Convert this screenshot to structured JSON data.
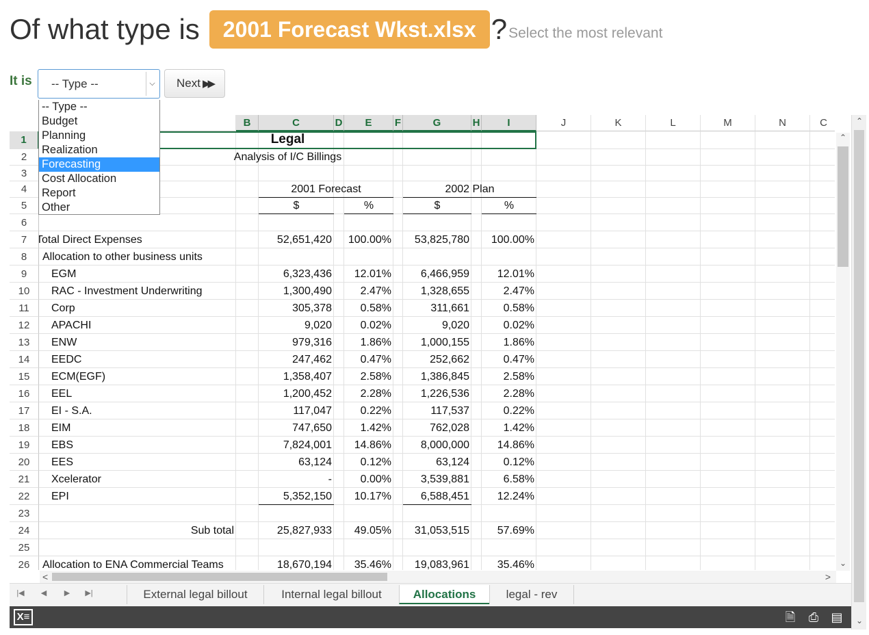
{
  "question": {
    "prefix": "Of what type is",
    "filename": "2001 Forecast Wkst.xlsx",
    "mark": "?",
    "hint": "Select the most relevant"
  },
  "form": {
    "label": "It is",
    "select_value": "-- Type --",
    "next_label": "Next",
    "options": [
      "-- Type --",
      "Budget",
      "Planning",
      "Realization",
      "Forecasting",
      "Cost Allocation",
      "Report",
      "Other"
    ],
    "highlighted_option": "Forecasting"
  },
  "spreadsheet": {
    "columns": [
      "B",
      "C",
      "D",
      "E",
      "F",
      "G",
      "H",
      "I",
      "J",
      "K",
      "L",
      "M",
      "N",
      "C"
    ],
    "row_numbers": [
      "1",
      "2",
      "3",
      "4",
      "5",
      "6",
      "7",
      "8",
      "9",
      "10",
      "11",
      "12",
      "13",
      "14",
      "15",
      "16",
      "17",
      "18",
      "19",
      "20",
      "21",
      "22",
      "23",
      "24",
      "25",
      "26"
    ],
    "title": "Legal",
    "subtitle": "Analysis of I/C Billings",
    "group_headers": {
      "forecast": "2001 Forecast",
      "plan": "2002 Plan"
    },
    "unit_headers": {
      "c_dollar": "$",
      "e_pct": "%",
      "g_dollar": "$",
      "i_pct": "%"
    },
    "rows": [
      {
        "row": 7,
        "label": "Total Direct Expenses",
        "c": "52,651,420",
        "e": "100.00%",
        "g": "53,825,780",
        "i": "100.00%",
        "indent": 0
      },
      {
        "row": 8,
        "label": "Allocation to other business units",
        "c": "",
        "e": "",
        "g": "",
        "i": "",
        "indent": 1
      },
      {
        "row": 9,
        "label": "EGM",
        "c": "6,323,436",
        "e": "12.01%",
        "g": "6,466,959",
        "i": "12.01%",
        "indent": 2
      },
      {
        "row": 10,
        "label": "RAC - Investment Underwriting",
        "c": "1,300,490",
        "e": "2.47%",
        "g": "1,328,655",
        "i": "2.47%",
        "indent": 2
      },
      {
        "row": 11,
        "label": "Corp",
        "c": "305,378",
        "e": "0.58%",
        "g": "311,661",
        "i": "0.58%",
        "indent": 2
      },
      {
        "row": 12,
        "label": "APACHI",
        "c": "9,020",
        "e": "0.02%",
        "g": "9,020",
        "i": "0.02%",
        "indent": 2
      },
      {
        "row": 13,
        "label": "ENW",
        "c": "979,316",
        "e": "1.86%",
        "g": "1,000,155",
        "i": "1.86%",
        "indent": 2
      },
      {
        "row": 14,
        "label": "EEDC",
        "c": "247,462",
        "e": "0.47%",
        "g": "252,662",
        "i": "0.47%",
        "indent": 2
      },
      {
        "row": 15,
        "label": "ECM(EGF)",
        "c": "1,358,407",
        "e": "2.58%",
        "g": "1,386,845",
        "i": "2.58%",
        "indent": 2
      },
      {
        "row": 16,
        "label": "EEL",
        "c": "1,200,452",
        "e": "2.28%",
        "g": "1,226,536",
        "i": "2.28%",
        "indent": 2
      },
      {
        "row": 17,
        "label": "EI - S.A.",
        "c": "117,047",
        "e": "0.22%",
        "g": "117,537",
        "i": "0.22%",
        "indent": 2
      },
      {
        "row": 18,
        "label": "EIM",
        "c": "747,650",
        "e": "1.42%",
        "g": "762,028",
        "i": "1.42%",
        "indent": 2
      },
      {
        "row": 19,
        "label": "EBS",
        "c": "7,824,001",
        "e": "14.86%",
        "g": "8,000,000",
        "i": "14.86%",
        "indent": 2
      },
      {
        "row": 20,
        "label": "EES",
        "c": "63,124",
        "e": "0.12%",
        "g": "63,124",
        "i": "0.12%",
        "indent": 2
      },
      {
        "row": 21,
        "label": "Xcelerator",
        "c": "-",
        "e": "0.00%",
        "g": "3,539,881",
        "i": "6.58%",
        "indent": 2
      },
      {
        "row": 22,
        "label": "EPI",
        "c": "5,352,150",
        "e": "10.17%",
        "g": "6,588,451",
        "i": "12.24%",
        "indent": 2
      },
      {
        "row": 24,
        "label": "Sub total",
        "c": "25,827,933",
        "e": "49.05%",
        "g": "31,053,515",
        "i": "57.69%",
        "indent": 3
      },
      {
        "row": 26,
        "label": "Allocation to ENA Commercial Teams",
        "c": "18,670,194",
        "e": "35.46%",
        "g": "19,083,961",
        "i": "35.46%",
        "indent": 1
      }
    ]
  },
  "tabs": [
    "External legal billout",
    "Internal legal billout",
    "Allocations",
    "legal - rev"
  ],
  "active_tab": "Allocations",
  "status_icons": [
    "download-icon",
    "print-icon",
    "reading-view-icon"
  ]
}
